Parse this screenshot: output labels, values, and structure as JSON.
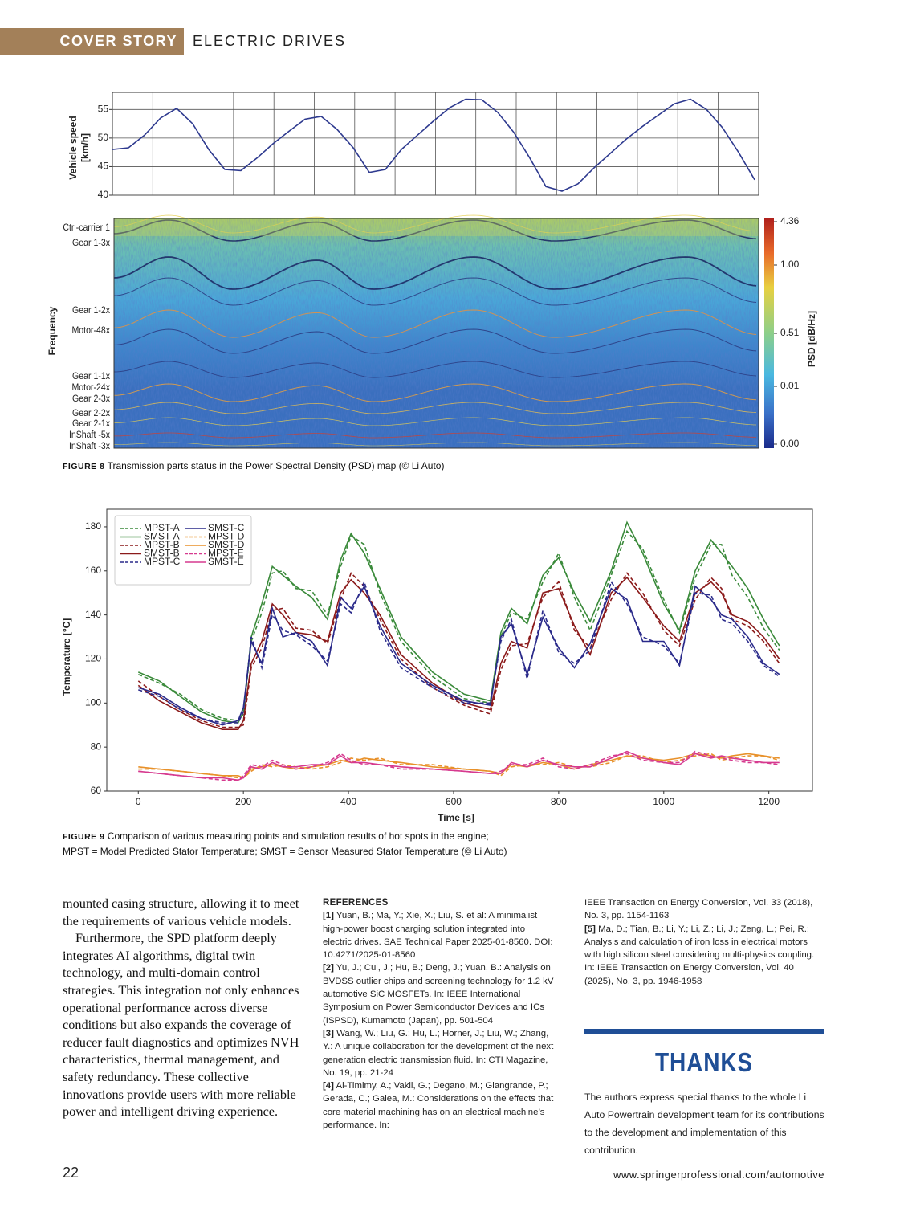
{
  "header": {
    "section": "COVER STORY",
    "topic": "ELECTRIC DRIVES"
  },
  "chart_data": [
    {
      "type": "line",
      "y_label": [
        "Vehicle speed",
        "[km/h]"
      ],
      "color": "#2e3a8f",
      "grid": true,
      "values": [
        48,
        48.3,
        50.5,
        53.5,
        55.2,
        52.5,
        48,
        44.5,
        44.3,
        46.5,
        49,
        51.2,
        53.3,
        53.8,
        51.5,
        48.3,
        44,
        44.5,
        48,
        50.5,
        53,
        55.3,
        56.8,
        56.7,
        54.5,
        51,
        46.5,
        41.5,
        40.7,
        42,
        44.8,
        47.3,
        49.8,
        52,
        54,
        56,
        56.8,
        55,
        51.8,
        47.5,
        42.7
      ],
      "ylim": [
        40,
        58
      ],
      "yticks": [
        40,
        45,
        50,
        55
      ]
    },
    {
      "type": "heatmap",
      "y_label": "Frequency",
      "row_labels": [
        "Ctrl-carrier 1",
        "Gear 1-3x",
        "Gear 1-2x",
        "Motor-48x",
        "Gear 1-1x",
        "Motor-24x",
        "Gear 2-3x",
        "Gear 2-2x",
        "Gear 2-1x",
        "InShaft -5x",
        "InShaft -3x"
      ],
      "colorbar_label": "PSD [dB/Hz]",
      "colorbar_ticks": [
        4.36,
        {
          "value": 1,
          "label": "1.00"
        },
        0.51,
        0.01,
        {
          "value": 0,
          "label": "0.00"
        }
      ]
    },
    {
      "type": "line",
      "x_label": "Time [s]",
      "y_label": "Temperature [°C]",
      "xlim": [
        -60,
        1283
      ],
      "ylim": [
        60,
        188
      ],
      "xticks": [
        0,
        200,
        400,
        600,
        800,
        1000,
        1200
      ],
      "yticks": [
        60,
        80,
        100,
        120,
        140,
        160,
        180
      ],
      "x": [
        0,
        40,
        80,
        120,
        160,
        190,
        200,
        215,
        235,
        255,
        275,
        300,
        330,
        360,
        385,
        405,
        430,
        460,
        500,
        560,
        620,
        670,
        690,
        710,
        740,
        770,
        800,
        830,
        860,
        900,
        930,
        960,
        1000,
        1030,
        1060,
        1090,
        1110,
        1130,
        1160,
        1190,
        1220
      ],
      "series": [
        {
          "name": "MPST-A",
          "color": "#3a8a3a",
          "dashed": true,
          "values": [
            113,
            109,
            104,
            97,
            93,
            92,
            95,
            128,
            141,
            159,
            160,
            152,
            151,
            140,
            162,
            176,
            172,
            150,
            128,
            112,
            102,
            100,
            130,
            141,
            138,
            155,
            168,
            148,
            133,
            158,
            178,
            170,
            147,
            132,
            157,
            172,
            172,
            158,
            148,
            134,
            124
          ]
        },
        {
          "name": "SMST-A",
          "color": "#3a8a3a",
          "dashed": false,
          "values": [
            114,
            110,
            103,
            96,
            92,
            91,
            96,
            130,
            145,
            162,
            158,
            153,
            148,
            138,
            165,
            177,
            168,
            152,
            130,
            114,
            104,
            101,
            132,
            143,
            136,
            158,
            166,
            150,
            137,
            160,
            182,
            168,
            145,
            133,
            160,
            174,
            168,
            162,
            152,
            138,
            126
          ]
        },
        {
          "name": "MPST-B",
          "color": "#8b1a1a",
          "dashed": true,
          "values": [
            110,
            103,
            97,
            92,
            89,
            89,
            90,
            116,
            125,
            142,
            143,
            134,
            133,
            127,
            147,
            159,
            153,
            138,
            120,
            107,
            99,
            95,
            115,
            126,
            127,
            148,
            155,
            133,
            125,
            147,
            159,
            150,
            133,
            126,
            147,
            157,
            152,
            138,
            135,
            128,
            118
          ]
        },
        {
          "name": "SMST-B",
          "color": "#8b1a1a",
          "dashed": false,
          "values": [
            108,
            101,
            96,
            91,
            88,
            88,
            92,
            118,
            128,
            145,
            140,
            132,
            131,
            128,
            150,
            156,
            150,
            140,
            122,
            109,
            100,
            97,
            118,
            128,
            125,
            150,
            152,
            135,
            122,
            150,
            157,
            148,
            135,
            128,
            150,
            155,
            150,
            140,
            137,
            130,
            120
          ]
        },
        {
          "name": "MPST-C",
          "color": "#2a2a8a",
          "dashed": true,
          "values": [
            106,
            103,
            97,
            93,
            91,
            91,
            96,
            130,
            116,
            140,
            133,
            131,
            126,
            119,
            145,
            141,
            155,
            133,
            116,
            107,
            100,
            100,
            128,
            138,
            111,
            142,
            123,
            118,
            124,
            155,
            145,
            130,
            126,
            118,
            150,
            149,
            138,
            136,
            128,
            117,
            112
          ]
        },
        {
          "name": "SMST-C",
          "color": "#2a2a8a",
          "dashed": false,
          "values": [
            107,
            104,
            98,
            93,
            90,
            92,
            98,
            128,
            118,
            143,
            130,
            132,
            128,
            117,
            148,
            143,
            153,
            135,
            118,
            108,
            101,
            99,
            130,
            136,
            113,
            139,
            125,
            116,
            127,
            152,
            147,
            128,
            128,
            117,
            153,
            147,
            140,
            138,
            130,
            118,
            113
          ]
        },
        {
          "name": "MPST-D",
          "color": "#e8912a",
          "dashed": true,
          "values": [
            70,
            70,
            69,
            68,
            67,
            66,
            66,
            69,
            72,
            71,
            72,
            71,
            70,
            71,
            73,
            75,
            74,
            75,
            72,
            72,
            70,
            69,
            67,
            71,
            72,
            72,
            73,
            71,
            71,
            73,
            76,
            76,
            73,
            74,
            76,
            77,
            74,
            75,
            76,
            76,
            74
          ]
        },
        {
          "name": "SMST-D",
          "color": "#e8912a",
          "dashed": false,
          "values": [
            71,
            70,
            69,
            68,
            67,
            67,
            66,
            70,
            71,
            72,
            71,
            70,
            71,
            72,
            74,
            73,
            75,
            74,
            73,
            71,
            70,
            69,
            68,
            72,
            71,
            73,
            72,
            70,
            72,
            74,
            76,
            75,
            74,
            75,
            77,
            76,
            75,
            76,
            77,
            76,
            75
          ]
        },
        {
          "name": "MPST-E",
          "color": "#d63a8f",
          "dashed": true,
          "values": [
            69,
            68,
            67,
            66,
            65,
            65,
            67,
            72,
            71,
            74,
            72,
            70,
            71,
            73,
            77,
            74,
            72,
            72,
            70,
            70,
            69,
            68,
            69,
            72,
            72,
            75,
            71,
            70,
            72,
            76,
            77,
            74,
            73,
            73,
            78,
            76,
            75,
            74,
            73,
            73,
            72
          ]
        },
        {
          "name": "SMST-E",
          "color": "#d63a8f",
          "dashed": false,
          "values": [
            69,
            68,
            67,
            66,
            66,
            65,
            66,
            71,
            70,
            73,
            71,
            71,
            72,
            72,
            76,
            73,
            73,
            72,
            71,
            70,
            69,
            68,
            68,
            73,
            71,
            74,
            72,
            71,
            71,
            75,
            78,
            75,
            73,
            72,
            77,
            75,
            76,
            75,
            74,
            73,
            73
          ]
        }
      ]
    }
  ],
  "figure8_caption": {
    "label": "FIGURE 8",
    "text": "Transmission parts status in the Power Spectral Density (PSD) map (© Li Auto)"
  },
  "figure9_caption": {
    "label": "FIGURE 9",
    "text": "Comparison of various measuring points and simulation results of hot spots in the engine;",
    "text2": "MPST = Model Predicted Stator Temperature; SMST = Sensor Measured Stator Temperature (© Li Auto)"
  },
  "body": {
    "paragraphs": [
      "mounted casing structure, allowing it to meet the requirements of various vehicle models.",
      "Furthermore, the SPD platform deeply integrates AI algorithms, digital twin technology, and multi-domain control strategies. This integration not only enhances operational performance across diverse conditions but also expands the coverage of reducer fault diagnostics and optimizes NVH characteristics, thermal management, and safety redundancy. These collective innovations provide users with more reliable power and intelligent driving experience."
    ]
  },
  "references": {
    "title": "REFERENCES",
    "items": [
      {
        "num": "[1]",
        "text": "Yuan, B.; Ma, Y.; Xie, X.; Liu, S. et al: A minimalist high-power boost charging solution integrated into electric drives. SAE Technical Paper 2025-01-8560. DOI: 10.4271/2025-01-8560"
      },
      {
        "num": "[2]",
        "text": "Yu, J.; Cui, J.; Hu, B.; Deng, J.; Yuan, B.: Analysis on BVDSS outlier chips and screening technology for 1.2 kV automotive SiC MOSFETs. In: IEEE International Symposium on Power Semiconductor Devices and ICs (ISPSD), Kumamoto (Japan), pp. 501-504"
      },
      {
        "num": "[3]",
        "text": "Wang, W.; Liu, G.; Hu, L.; Horner, J.; Liu, W.; Zhang, Y.: A unique collaboration for the development of the next generation electric transmission fluid. In: CTI Magazine, No. 19, pp. 21-24"
      },
      {
        "num": "[4]",
        "text": "Al-Timimy, A.; Vakil, G.; Degano, M.; Giangrande, P.; Gerada, C.; Galea, M.: Considerations on the effects that core material machining has on an electrical machine’s performance. In:"
      }
    ],
    "continuation": "IEEE Transaction on Energy Conversion, Vol. 33 (2018), No. 3, pp. 1154-1163",
    "items2": [
      {
        "num": "[5]",
        "text": "Ma, D.; Tian, B.; Li, Y.; Li, Z.; Li, J.; Zeng, L.; Pei, R.: Analysis and calculation of iron loss in electrical motors with high silicon steel considering multi-physics coupling. In: IEEE Transaction on Energy Conversion, Vol. 40 (2025), No. 3, pp. 1946-1958"
      }
    ]
  },
  "thanks": {
    "title": "THANKS",
    "text": "The authors express special thanks to the whole Li Auto Powertrain development team for its contributions to the development and implementation of this contribution."
  },
  "footer": {
    "page": 22,
    "url": "www.springerprofessional.com/automotive"
  }
}
